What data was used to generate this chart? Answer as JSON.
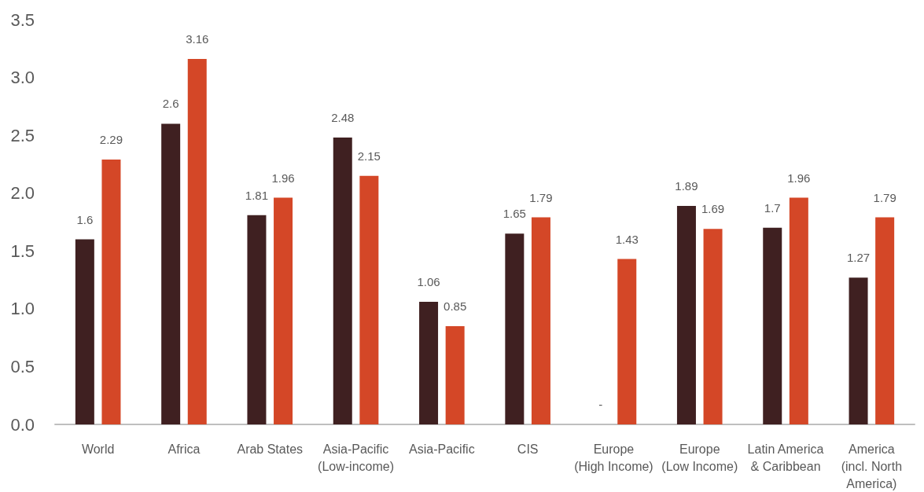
{
  "chart_data": {
    "type": "bar",
    "categories": [
      "World",
      "Africa",
      "Arab States",
      "Asia-Pacific\n(Low-income)",
      "Asia-Pacific",
      "CIS",
      "Europe\n(High Income)",
      "Europe\n(Low Income)",
      "Latin America\n& Caribbean",
      "America\n(incl. North\nAmerica)"
    ],
    "series": [
      {
        "color": "#3f2021",
        "values": [
          1.6,
          2.6,
          1.81,
          2.48,
          1.06,
          1.65,
          null,
          1.89,
          1.7,
          1.27
        ],
        "value_labels": [
          "1.6",
          "2.6",
          "1.81",
          "2.48",
          "1.06",
          "1.65",
          "-",
          "1.89",
          "1.7",
          "1.27"
        ]
      },
      {
        "color": "#d44727",
        "values": [
          2.29,
          3.16,
          1.96,
          2.15,
          0.85,
          1.79,
          1.43,
          1.69,
          1.96,
          1.79
        ],
        "value_labels": [
          "2.29",
          "3.16",
          "1.96",
          "2.15",
          "0.85",
          "1.79",
          "1.43",
          "1.69",
          "1.96",
          "1.79"
        ]
      }
    ],
    "ylim": [
      0,
      3.5
    ],
    "yticks": [
      {
        "value": 0,
        "label": "0.0"
      },
      {
        "value": 0.5,
        "label": "0.5"
      },
      {
        "value": 1,
        "label": "1.0"
      },
      {
        "value": 1.5,
        "label": "1.5"
      },
      {
        "value": 2,
        "label": "2.0"
      },
      {
        "value": 2.5,
        "label": "2.5"
      },
      {
        "value": 3,
        "label": "3.0"
      },
      {
        "value": 3.5,
        "label": "3.5"
      }
    ],
    "grid": false
  }
}
